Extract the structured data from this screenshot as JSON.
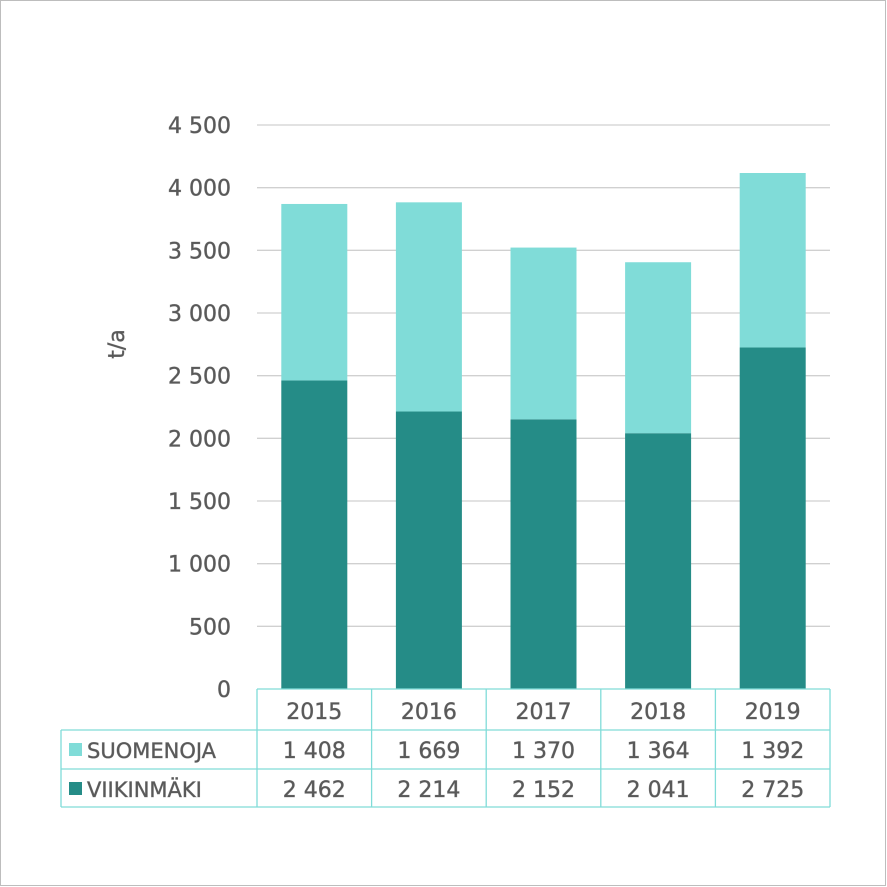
{
  "chart_data": {
    "type": "bar",
    "stacked": true,
    "categories": [
      "2015",
      "2016",
      "2017",
      "2018",
      "2019"
    ],
    "series": [
      {
        "name": "VIIKINMÄKI",
        "values": [
          2462,
          2214,
          2152,
          2041,
          2725
        ],
        "color": "#258C87"
      },
      {
        "name": "SUOMENOJA",
        "values": [
          1408,
          1669,
          1370,
          1364,
          1392
        ],
        "color": "#80DCD8"
      }
    ],
    "table_rows": [
      {
        "name": "SUOMENOJA",
        "values": [
          "1 408",
          "1 669",
          "1 370",
          "1 364",
          "1 392"
        ],
        "color": "#80DCD8"
      },
      {
        "name": "VIIKINMÄKI",
        "values": [
          "2 462",
          "2 214",
          "2 152",
          "2 041",
          "2 725"
        ],
        "color": "#258C87"
      }
    ],
    "ylabel": "t/a",
    "ylim": [
      0,
      4500
    ],
    "yticks": [
      0,
      500,
      1000,
      1500,
      2000,
      2500,
      3000,
      3500,
      4000,
      4500
    ],
    "ytick_labels": [
      "0",
      "500",
      "1 000",
      "1 500",
      "2 000",
      "2 500",
      "3 000",
      "3 500",
      "4 000",
      "4 500"
    ],
    "grid": true,
    "legend": "data-table",
    "table_border_color": "#80DCD8"
  }
}
